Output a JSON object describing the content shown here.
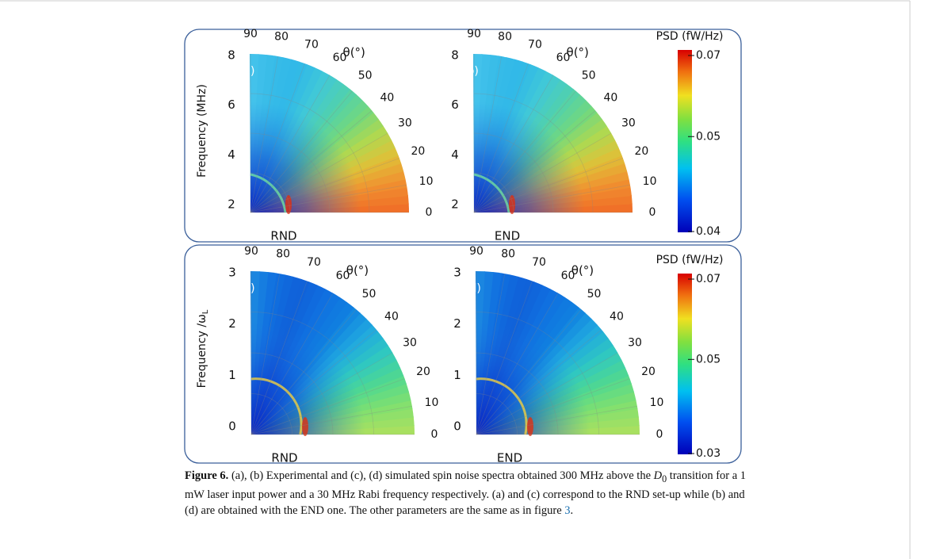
{
  "figure": {
    "rows": [
      {
        "y_label": "Frequency (MHz)",
        "y_label_sub": null,
        "colorbar": {
          "title": "PSD (fW/Hz)",
          "ticks": [
            "0.07",
            "0.05",
            "0.04"
          ]
        },
        "radial_ticks": [
          "8",
          "6",
          "4",
          "2"
        ]
      },
      {
        "y_label": "Frequency /ω",
        "y_label_sub": "L",
        "colorbar": {
          "title": "PSD (fW/Hz)",
          "ticks": [
            "0.07",
            "0.05",
            "0.03"
          ]
        },
        "radial_ticks": [
          "3",
          "2",
          "1",
          "0"
        ]
      }
    ],
    "panels": [
      {
        "label": "(a)",
        "setup": "RND"
      },
      {
        "label": "(b)",
        "setup": "END"
      },
      {
        "label": "(c)",
        "setup": "RND"
      },
      {
        "label": "(d)",
        "setup": "END"
      }
    ],
    "angle_ticks": [
      "90",
      "80",
      "70",
      "60",
      "50",
      "40",
      "30",
      "20",
      "10",
      "0"
    ],
    "theta_label": "θ(°)"
  },
  "caption": {
    "figure_label": "Figure 6.",
    "text_1": "(a), (b) Experimental and (c), (d) simulated spin noise spectra obtained 300 MHz above the",
    "symbol": "D",
    "symbol_sub": "0",
    "text_2": "transition for a 1 mW laser input power and a 30 MHz Rabi frequency respectively. (a) and (c) correspond to the RND set-up while (b) and (d) are obtained with the END one. The other parameters are the same as in figure",
    "link": "3",
    "text_3": "."
  }
}
